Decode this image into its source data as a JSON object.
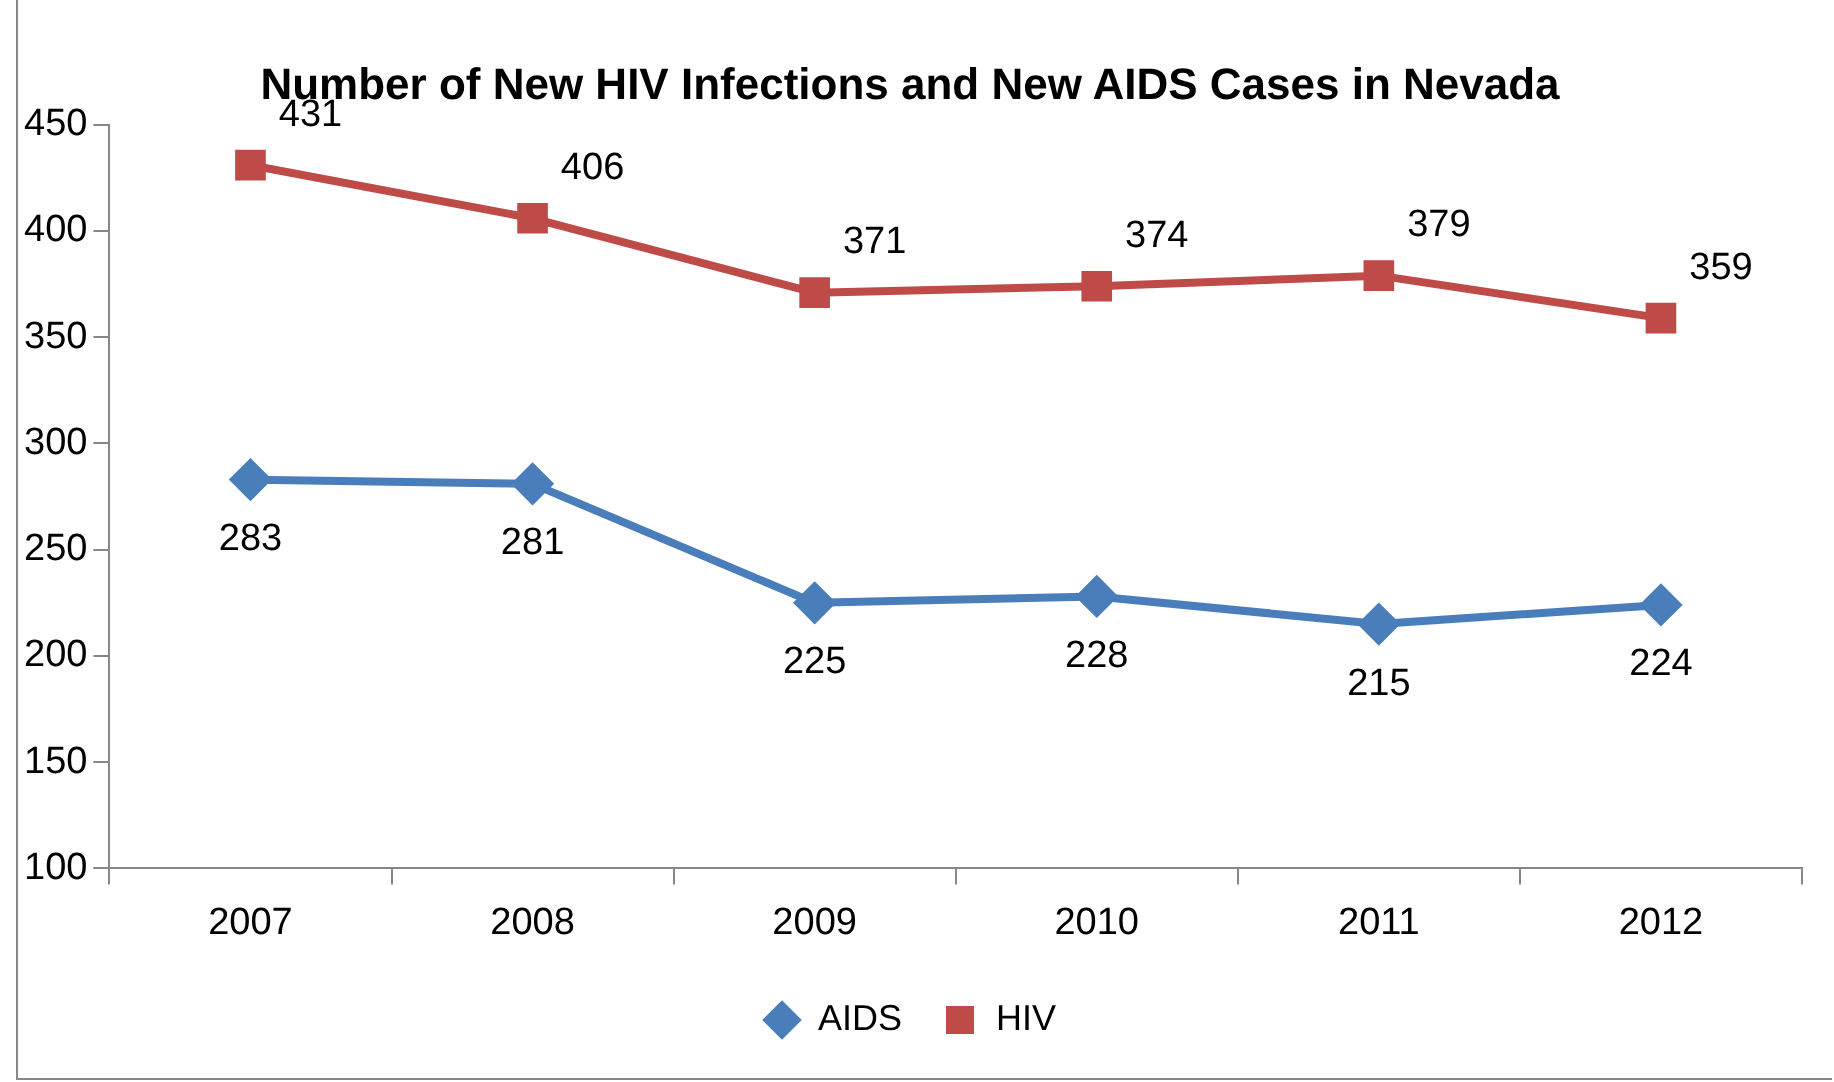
{
  "chart_data": {
    "type": "line",
    "title": "Number of New HIV Infections and New AIDS Cases in Nevada",
    "categories": [
      "2007",
      "2008",
      "2009",
      "2010",
      "2011",
      "2012"
    ],
    "series": [
      {
        "name": "AIDS",
        "color": "#4a7ebb",
        "marker": "diamond",
        "values": [
          283,
          281,
          225,
          228,
          215,
          224
        ]
      },
      {
        "name": "HIV",
        "color": "#be4b48",
        "marker": "square",
        "values": [
          431,
          406,
          371,
          374,
          379,
          359
        ]
      }
    ],
    "ylim": [
      100,
      450
    ],
    "yticks": [
      100,
      150,
      200,
      250,
      300,
      350,
      400,
      450
    ],
    "grid": false,
    "legend": "bottom",
    "data_labels": true,
    "line_style": "solid"
  }
}
